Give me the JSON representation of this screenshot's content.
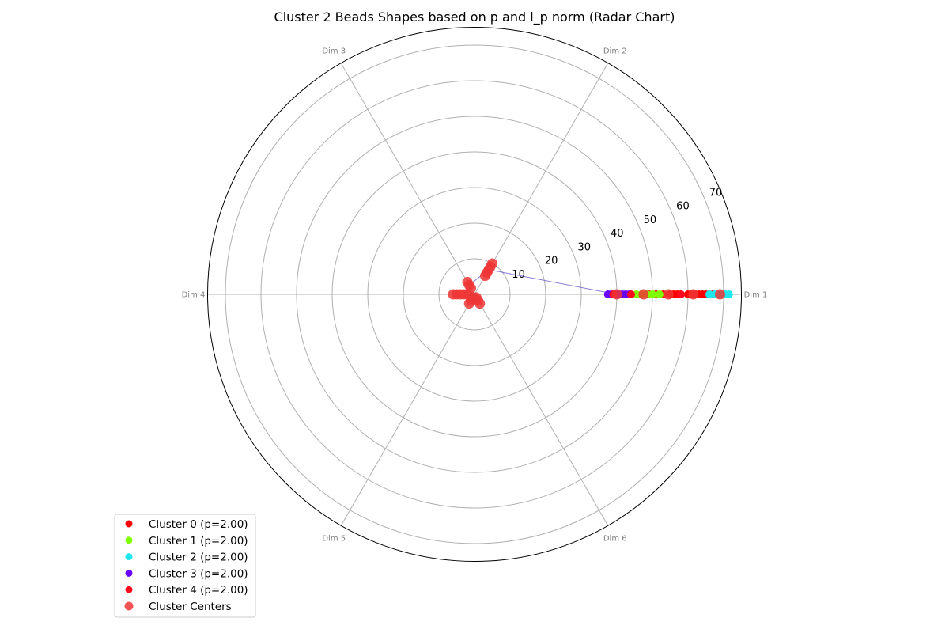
{
  "chart_data": {
    "type": "scatter",
    "projection": "polar",
    "title": "Cluster 2 Beads Shapes based on p and l_p norm (Radar Chart)",
    "axes": [
      "Dim 1",
      "Dim 2",
      "Dim 3",
      "Dim 4",
      "Dim 5",
      "Dim 6"
    ],
    "rticks": [
      10,
      20,
      30,
      40,
      50,
      60,
      70
    ],
    "rlim": [
      0,
      75
    ],
    "grid": true,
    "legend_placement": "lower-left",
    "series": [
      {
        "name": "Cluster 0 (p=2.00)",
        "color": "#ff0000",
        "points": [
          {
            "angle_deg": 0,
            "r": 49
          },
          {
            "angle_deg": 0,
            "r": 51
          },
          {
            "angle_deg": 0,
            "r": 53
          },
          {
            "angle_deg": 0,
            "r": 55
          },
          {
            "angle_deg": 0,
            "r": 56
          },
          {
            "angle_deg": 0,
            "r": 57
          },
          {
            "angle_deg": 0,
            "r": 58
          },
          {
            "angle_deg": 0,
            "r": 60
          },
          {
            "angle_deg": 0,
            "r": 61
          },
          {
            "angle_deg": 0,
            "r": 62
          },
          {
            "angle_deg": 0,
            "r": 63
          },
          {
            "angle_deg": 0,
            "r": 64
          },
          {
            "angle_deg": 0,
            "r": 65
          },
          {
            "angle_deg": 0,
            "r": 66
          },
          {
            "angle_deg": 0,
            "r": 67
          }
        ]
      },
      {
        "name": "Cluster 1 (p=2.00)",
        "color": "#80ff00",
        "points": [
          {
            "angle_deg": 0,
            "r": 45.5
          },
          {
            "angle_deg": 0,
            "r": 47
          },
          {
            "angle_deg": 0,
            "r": 48.5
          },
          {
            "angle_deg": 0,
            "r": 50
          },
          {
            "angle_deg": 0,
            "r": 52
          }
        ]
      },
      {
        "name": "Cluster 2 (p=2.00)",
        "color": "#1ee8ee",
        "points": [
          {
            "angle_deg": 0,
            "r": 66
          },
          {
            "angle_deg": 0,
            "r": 67.5
          },
          {
            "angle_deg": 0,
            "r": 69
          },
          {
            "angle_deg": 0,
            "r": 70.5
          },
          {
            "angle_deg": 0,
            "r": 71.5
          }
        ]
      },
      {
        "name": "Cluster 3 (p=2.00)",
        "color": "#6a00ff",
        "points": [
          {
            "angle_deg": 0,
            "r": 37.5
          },
          {
            "angle_deg": 0,
            "r": 38.5
          },
          {
            "angle_deg": 0,
            "r": 39.5
          },
          {
            "angle_deg": 0,
            "r": 40.5
          },
          {
            "angle_deg": 0,
            "r": 41.5
          },
          {
            "angle_deg": 0,
            "r": 42.5
          },
          {
            "angle_deg": 0,
            "r": 43.5
          }
        ]
      },
      {
        "name": "Cluster 4 (p=2.00)",
        "color": "#ff0a1e",
        "points": [
          {
            "angle_deg": 0,
            "r": 39
          },
          {
            "angle_deg": 0,
            "r": 44
          },
          {
            "angle_deg": 0,
            "r": 58
          }
        ]
      }
    ],
    "centers": {
      "name": "Cluster Centers",
      "color": "#ee3535",
      "points": [
        {
          "angle_deg": 0,
          "r": 40
        },
        {
          "angle_deg": 0,
          "r": 47.5
        },
        {
          "angle_deg": 0,
          "r": 54.5
        },
        {
          "angle_deg": 0,
          "r": 61.5
        },
        {
          "angle_deg": 0,
          "r": 69
        },
        {
          "angle_deg": 60,
          "r": 6
        },
        {
          "angle_deg": 60,
          "r": 7
        },
        {
          "angle_deg": 60,
          "r": 8
        },
        {
          "angle_deg": 60,
          "r": 9
        },
        {
          "angle_deg": 60,
          "r": 10
        },
        {
          "angle_deg": 120,
          "r": 2
        },
        {
          "angle_deg": 120,
          "r": 3
        },
        {
          "angle_deg": 120,
          "r": 4
        },
        {
          "angle_deg": 180,
          "r": 2
        },
        {
          "angle_deg": 180,
          "r": 3
        },
        {
          "angle_deg": 180,
          "r": 4
        },
        {
          "angle_deg": 180,
          "r": 5
        },
        {
          "angle_deg": 180,
          "r": 6
        },
        {
          "angle_deg": 240,
          "r": 1
        },
        {
          "angle_deg": 240,
          "r": 2
        },
        {
          "angle_deg": 240,
          "r": 3
        },
        {
          "angle_deg": 300,
          "r": 1
        },
        {
          "angle_deg": 300,
          "r": 2
        },
        {
          "angle_deg": 300,
          "r": 3
        }
      ],
      "links": [
        {
          "from": {
            "angle_deg": 0,
            "r": 40
          },
          "to": {
            "angle_deg": 60,
            "r": 8
          }
        },
        {
          "from": {
            "angle_deg": 60,
            "r": 8
          },
          "to": {
            "angle_deg": 120,
            "r": 3
          }
        }
      ]
    }
  }
}
